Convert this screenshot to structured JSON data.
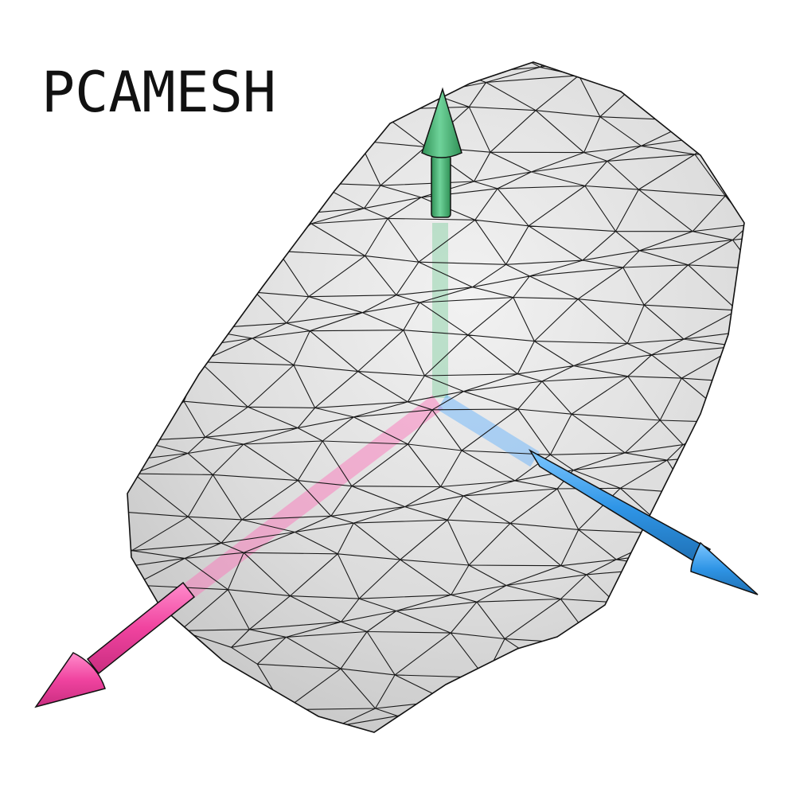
{
  "title": "PCAMESH"
}
